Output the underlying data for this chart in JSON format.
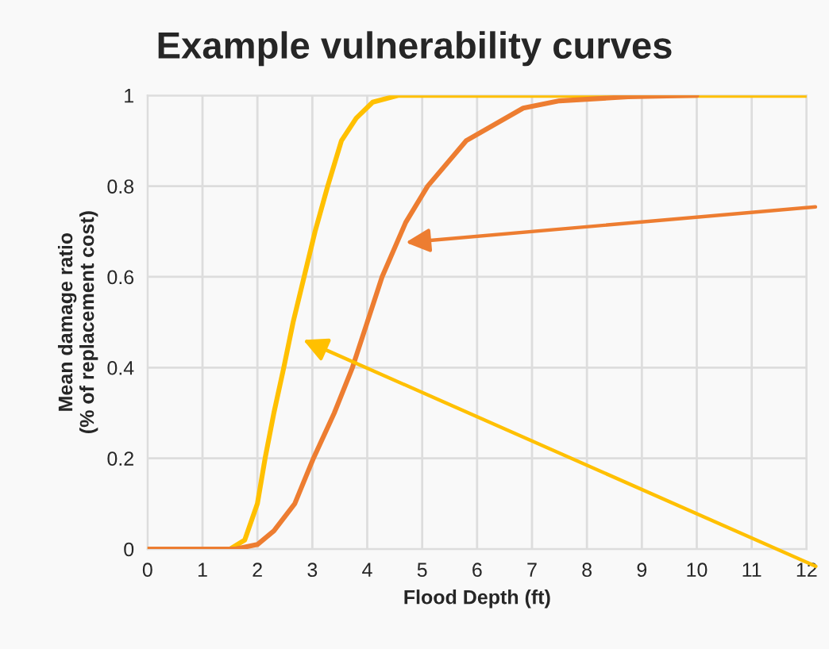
{
  "chart_data": {
    "type": "line",
    "title": "Example vulnerability curves",
    "xlabel": "Flood Depth (ft)",
    "ylabel": "Mean damage ratio\n(% of replacement cost)",
    "xlim": [
      0,
      12
    ],
    "ylim": [
      0,
      1
    ],
    "xticks": [
      0,
      1,
      2,
      3,
      4,
      5,
      6,
      7,
      8,
      9,
      10,
      11,
      12
    ],
    "yticks": [
      0,
      0.2,
      0.4,
      0.6,
      0.8,
      1
    ],
    "grid": true,
    "line_style": "solid",
    "marker": "none",
    "series": [
      {
        "color": "#ffc000",
        "x": [
          0,
          1.5,
          1.77,
          2,
          2.14,
          2.3,
          2.48,
          2.65,
          2.85,
          3.05,
          3.28,
          3.53,
          3.8,
          4.1,
          4.56,
          5,
          6,
          8,
          10,
          12
        ],
        "values": [
          0,
          0,
          0.02,
          0.1,
          0.2,
          0.3,
          0.4,
          0.5,
          0.6,
          0.7,
          0.8,
          0.9,
          0.95,
          0.985,
          1,
          1,
          1,
          1,
          1,
          1
        ]
      },
      {
        "color": "#ed7d31",
        "x": [
          0,
          1.6,
          2,
          2.3,
          2.68,
          3.02,
          3.4,
          3.73,
          4,
          4.27,
          4.7,
          5.1,
          5.8,
          6.84,
          7.5,
          8.75,
          10
        ],
        "values": [
          0,
          0,
          0.01,
          0.04,
          0.1,
          0.2,
          0.3,
          0.4,
          0.5,
          0.6,
          0.72,
          0.8,
          0.9,
          0.972,
          0.988,
          0.997,
          1
        ]
      }
    ]
  }
}
